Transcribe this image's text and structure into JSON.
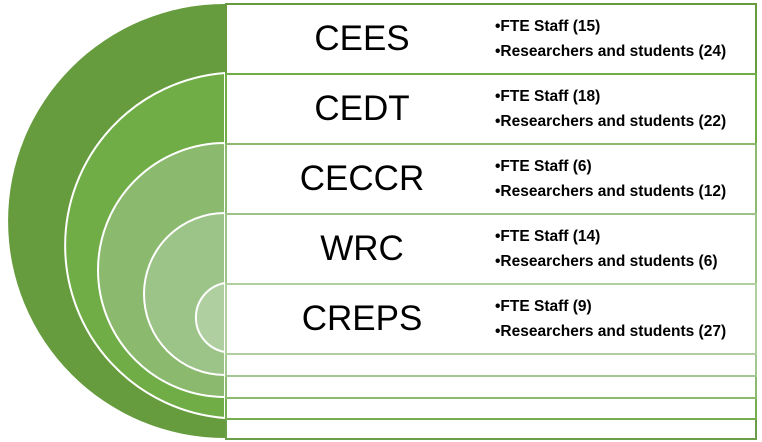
{
  "colors": [
    "#669c3e",
    "#70ad47",
    "#8bb96e",
    "#9dc488",
    "#b0cfa0"
  ],
  "centers": [
    {
      "name": "CEES",
      "items": [
        "•FTE Staff (15)",
        "•Researchers and students (24)"
      ]
    },
    {
      "name": "CEDT",
      "items": [
        "•FTE Staff (18)",
        "•Researchers and students (22)"
      ]
    },
    {
      "name": "CECCR",
      "items": [
        "•FTE Staff (6)",
        "•Researchers and students (12)"
      ]
    },
    {
      "name": "WRC",
      "items": [
        "•FTE Staff (14)",
        "•Researchers and students (6)"
      ]
    },
    {
      "name": "CREPS",
      "items": [
        "•FTE Staff (9)",
        "•Researchers and students (27)"
      ]
    }
  ]
}
